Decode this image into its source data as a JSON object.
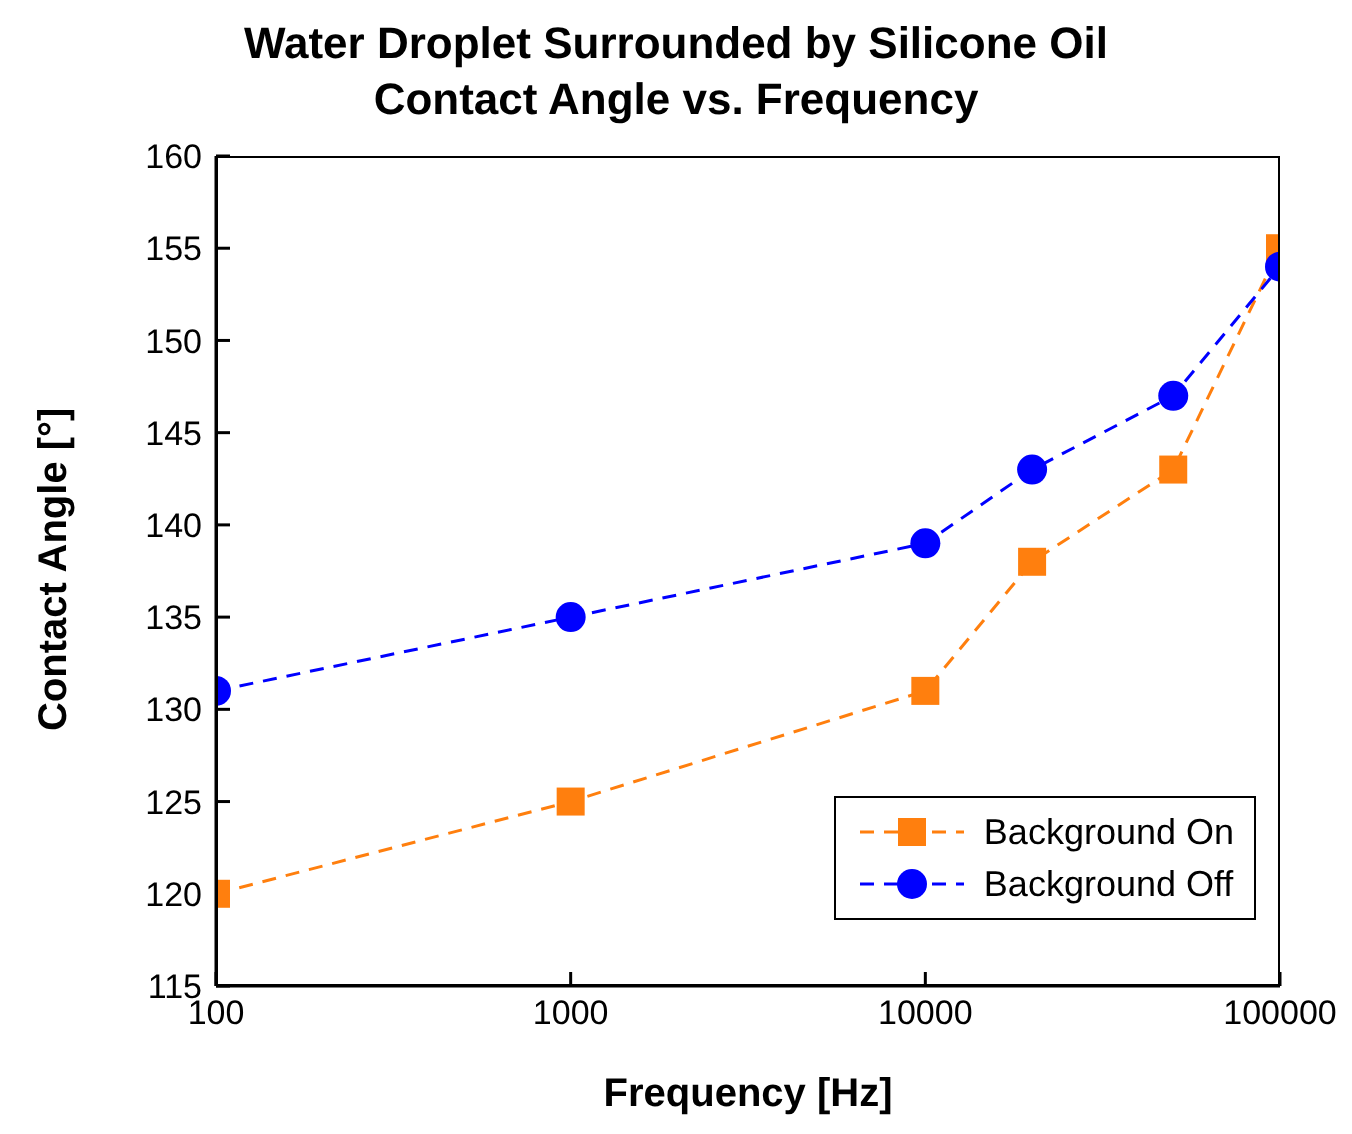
{
  "chart_data": {
    "type": "line",
    "title": "Water Droplet Surrounded by Silicone Oil\nContact Angle vs. Frequency",
    "xlabel": "Frequency [Hz]",
    "ylabel": "Contact Angle [°]",
    "x": [
      100,
      1000,
      10000,
      20000,
      50000,
      100000
    ],
    "series": [
      {
        "name": "Background On",
        "color": "#ff7f0e",
        "marker": "square",
        "values": [
          120,
          125,
          131,
          138,
          143,
          155
        ]
      },
      {
        "name": "Background Off",
        "color": "#0000ff",
        "marker": "circle",
        "values": [
          131,
          135,
          139,
          143,
          147,
          154
        ]
      }
    ],
    "log": "x",
    "xlim": [
      100,
      100000
    ],
    "xticks": [
      100,
      1000,
      10000,
      100000
    ],
    "ylim": [
      115,
      160
    ],
    "yticks": [
      115,
      120,
      125,
      130,
      135,
      140,
      145,
      150,
      155,
      160
    ],
    "line_style": "dashed",
    "legend": "bottom right",
    "grid": false
  }
}
